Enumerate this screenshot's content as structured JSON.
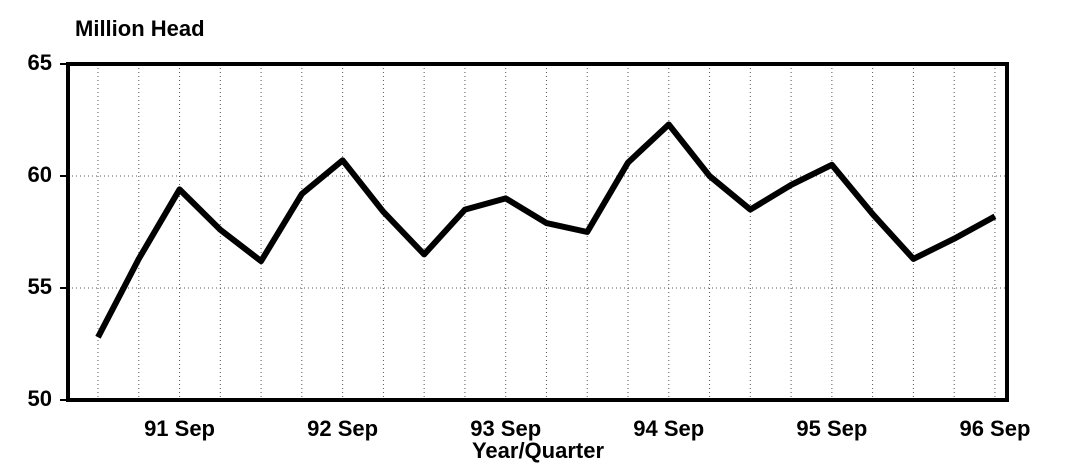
{
  "chart_data": {
    "type": "line",
    "y_axis_label": "Million Head",
    "x_axis_label": "Year/Quarter",
    "categories": [
      null,
      null,
      "91 Sep",
      null,
      null,
      null,
      "92 Sep",
      null,
      null,
      null,
      "93 Sep",
      null,
      null,
      null,
      "94 Sep",
      null,
      null,
      null,
      "95 Sep",
      null,
      null,
      null,
      "96 Sep"
    ],
    "series": [
      {
        "name": "Million Head",
        "color": "#000000",
        "values": [
          52.8,
          56.3,
          59.4,
          57.6,
          56.2,
          59.2,
          60.7,
          58.4,
          56.5,
          58.5,
          59.0,
          57.9,
          57.5,
          60.6,
          62.3,
          60.0,
          58.5,
          59.6,
          60.5,
          58.3,
          56.3,
          57.2,
          58.2
        ]
      }
    ],
    "ylim": [
      50,
      65
    ],
    "yticks": [
      50,
      55,
      60,
      65
    ],
    "grid": true
  }
}
